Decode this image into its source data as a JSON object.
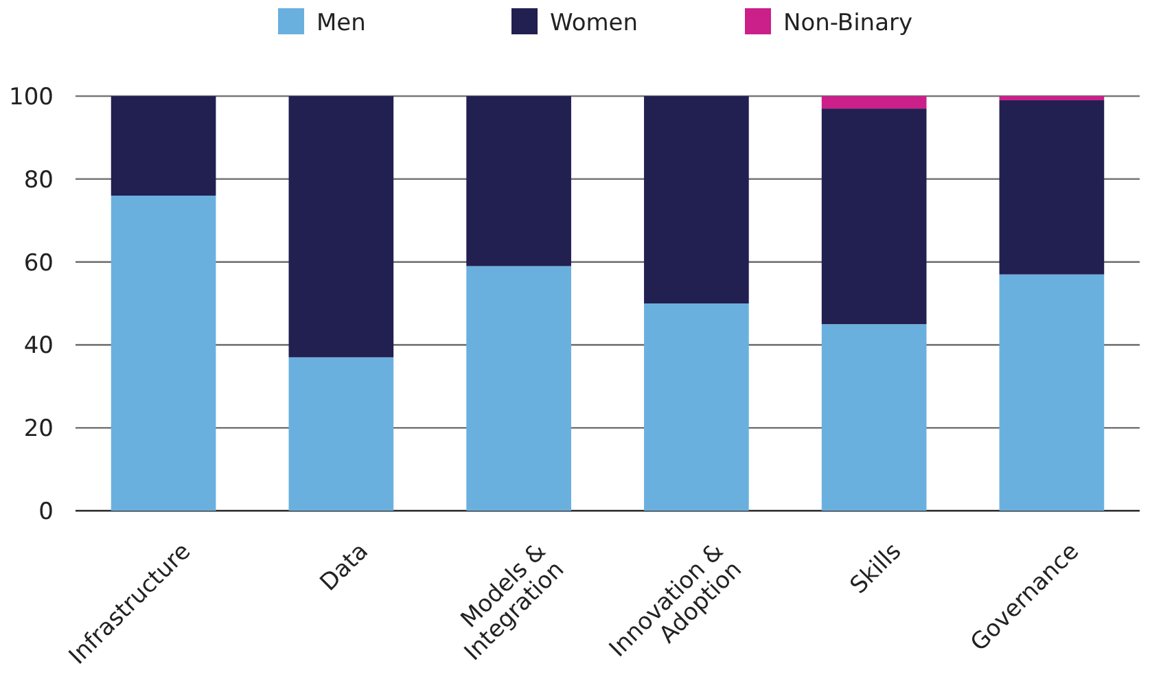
{
  "chart_data": {
    "type": "bar",
    "stacked": true,
    "categories": [
      "Infrastructure",
      "Data",
      "Models &\nIntegration",
      "Innovation &\nAdoption",
      "Skills",
      "Governance"
    ],
    "series": [
      {
        "name": "Men",
        "color": "#6ab0df",
        "values": [
          76,
          37,
          59,
          50,
          45,
          57
        ]
      },
      {
        "name": "Women",
        "color": "#221f51",
        "values": [
          24,
          63,
          41,
          50,
          52,
          42
        ]
      },
      {
        "name": "Non-Binary",
        "color": "#cb1f8a",
        "values": [
          0,
          0,
          0,
          0,
          3,
          1
        ]
      }
    ],
    "ylim": [
      0,
      100
    ],
    "yticks": [
      0,
      20,
      40,
      60,
      80,
      100
    ],
    "grid": "y",
    "legend": "top"
  }
}
